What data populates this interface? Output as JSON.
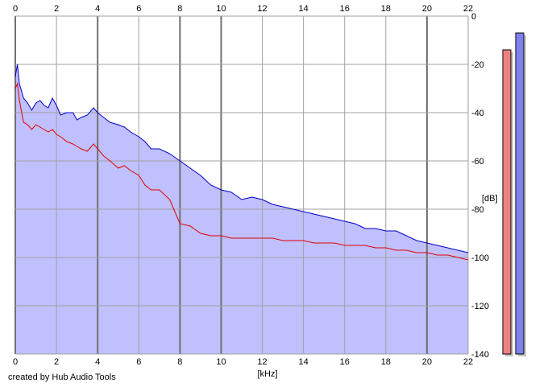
{
  "chart_data": {
    "type": "line",
    "xlabel": "[kHz]",
    "ylabel": "[dB]",
    "xlim": [
      0,
      22
    ],
    "ylim": [
      -140,
      0
    ],
    "x_ticks": [
      "0",
      "2",
      "4",
      "6",
      "8",
      "10",
      "12",
      "14",
      "16",
      "18",
      "20",
      "22"
    ],
    "y_ticks": [
      "0",
      "-20",
      "-40",
      "-60",
      "-80",
      "-100",
      "-120",
      "-140"
    ],
    "grid": true,
    "x_grid_bold": [
      0,
      4,
      8,
      10,
      20
    ],
    "fill_color": "#c0c0ff",
    "series": [
      {
        "color": "#0000c8",
        "x": [
          0.0,
          0.1,
          0.2,
          0.4,
          0.6,
          0.8,
          1.0,
          1.2,
          1.4,
          1.6,
          1.8,
          2.0,
          2.2,
          2.5,
          2.8,
          3.0,
          3.2,
          3.5,
          3.8,
          4.0,
          4.3,
          4.6,
          5.0,
          5.3,
          5.6,
          6.0,
          6.3,
          6.6,
          7.0,
          7.5,
          8.0,
          8.5,
          9.0,
          9.5,
          10.0,
          10.5,
          11.0,
          11.5,
          12.0,
          12.5,
          13.0,
          13.5,
          14.0,
          14.5,
          15.0,
          15.5,
          16.0,
          16.5,
          17.0,
          17.5,
          18.0,
          18.5,
          19.0,
          19.5,
          20.0,
          20.5,
          21.0,
          21.5,
          22.0
        ],
        "y": [
          -25,
          -20,
          -28,
          -34,
          -36,
          -39,
          -36,
          -35,
          -37,
          -38,
          -34,
          -37,
          -41,
          -40,
          -40,
          -43,
          -42,
          -41,
          -38,
          -40,
          -42,
          -44,
          -45,
          -46,
          -48,
          -50,
          -52,
          -55,
          -55,
          -57,
          -60,
          -63,
          -66,
          -70,
          -72,
          -73,
          -76,
          -75,
          -76,
          -78,
          -79,
          -80,
          -81,
          -82,
          -83,
          -84,
          -85,
          -86,
          -88,
          -88,
          -89,
          -89,
          -91,
          -93,
          -94,
          -95,
          -96,
          -97,
          -98
        ]
      },
      {
        "color": "#e00000",
        "x": [
          0.0,
          0.1,
          0.2,
          0.4,
          0.6,
          0.8,
          1.0,
          1.2,
          1.4,
          1.6,
          1.8,
          2.0,
          2.2,
          2.5,
          2.8,
          3.0,
          3.2,
          3.5,
          3.8,
          4.0,
          4.3,
          4.6,
          5.0,
          5.3,
          5.6,
          6.0,
          6.3,
          6.6,
          7.0,
          7.5,
          8.0,
          8.5,
          9.0,
          9.5,
          10.0,
          10.5,
          11.0,
          11.5,
          12.0,
          12.5,
          13.0,
          13.5,
          14.0,
          14.5,
          15.0,
          15.5,
          16.0,
          16.5,
          17.0,
          17.5,
          18.0,
          18.5,
          19.0,
          19.5,
          20.0,
          20.5,
          21.0,
          21.5,
          22.0
        ],
        "y": [
          -30,
          -28,
          -35,
          -44,
          -45,
          -47,
          -45,
          -46,
          -47,
          -48,
          -47,
          -49,
          -50,
          -52,
          -53,
          -54,
          -55,
          -56,
          -53,
          -55,
          -58,
          -60,
          -63,
          -62,
          -64,
          -66,
          -70,
          -72,
          -72,
          -76,
          -86,
          -87,
          -90,
          -91,
          -91,
          -92,
          -92,
          -92,
          -92,
          -92,
          -93,
          -93,
          -93,
          -94,
          -94,
          -94,
          -95,
          -95,
          -95,
          -96,
          -96,
          -97,
          -97,
          -98,
          -98,
          -99,
          -99,
          -100,
          -101
        ]
      }
    ],
    "level_meters": [
      {
        "color": "#f08080",
        "level_db": -14
      },
      {
        "color": "#8080f0",
        "level_db": -7
      }
    ]
  },
  "credit": "created by Hub Audio Tools"
}
